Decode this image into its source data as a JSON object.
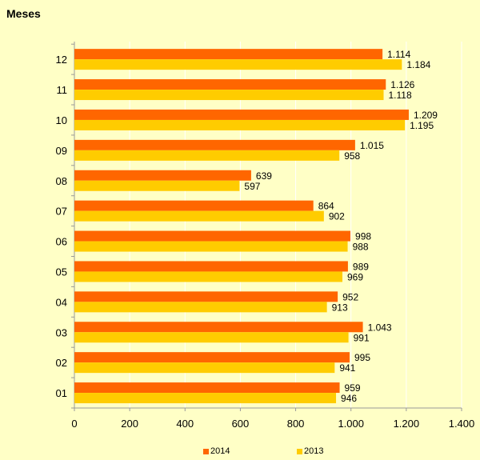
{
  "chart_data": {
    "type": "bar",
    "orientation": "horizontal",
    "title": "Meses",
    "categories": [
      "01",
      "02",
      "03",
      "04",
      "05",
      "06",
      "07",
      "08",
      "09",
      "10",
      "11",
      "12"
    ],
    "series": [
      {
        "name": "2014",
        "color": "#ff6600",
        "values": [
          959,
          995,
          1043,
          952,
          989,
          998,
          864,
          639,
          1015,
          1209,
          1126,
          1114
        ]
      },
      {
        "name": "2013",
        "color": "#ffcc00",
        "values": [
          946,
          941,
          991,
          913,
          969,
          988,
          902,
          597,
          958,
          1195,
          1118,
          1184
        ]
      }
    ],
    "value_labels": {
      "2014": [
        "959",
        "995",
        "1.043",
        "952",
        "989",
        "998",
        "864",
        "639",
        "1.015",
        "1.209",
        "1.126",
        "1.114"
      ],
      "2013": [
        "946",
        "941",
        "991",
        "913",
        "969",
        "988",
        "902",
        "597",
        "958",
        "1.195",
        "1.118",
        "1.184"
      ]
    },
    "xlim": [
      0,
      1400
    ],
    "x_ticks": [
      0,
      200,
      400,
      600,
      800,
      1000,
      1200,
      1400
    ],
    "x_tick_labels": [
      "0",
      "200",
      "400",
      "600",
      "800",
      "1.000",
      "1.200",
      "1.400"
    ],
    "grid": true,
    "legend_position": "bottom"
  }
}
